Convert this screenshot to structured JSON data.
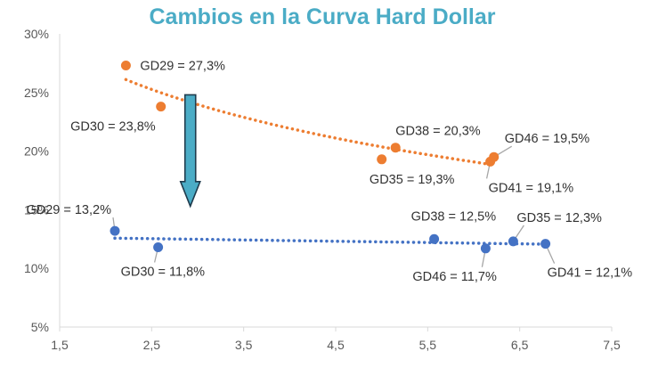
{
  "chart_data": {
    "type": "scatter",
    "title": "Cambios en la Curva Hard Dollar",
    "xlabel": "",
    "ylabel": "",
    "xlim": [
      1.5,
      7.5
    ],
    "ylim": [
      5,
      30
    ],
    "x_ticks": [
      1.5,
      2.5,
      3.5,
      4.5,
      5.5,
      6.5,
      7.5
    ],
    "x_tick_labels": [
      "1,5",
      "2,5",
      "3,5",
      "4,5",
      "5,5",
      "6,5",
      "7,5"
    ],
    "y_ticks": [
      5,
      10,
      15,
      20,
      25,
      30
    ],
    "y_tick_labels": [
      "5%",
      "10%",
      "15%",
      "20%",
      "25%",
      "30%"
    ],
    "grid": false,
    "legend": "none",
    "trendline": "dotted",
    "arrow": "down",
    "colors": {
      "title": "#4BACC6",
      "orange": "#ED7D31",
      "blue": "#4472C4",
      "arrow": "#4BACC6",
      "leader": "#A6A6A6",
      "axis": "#D9D9D9"
    },
    "series": [
      {
        "color": "orange",
        "trend": "logarithmic",
        "points": [
          {
            "x": 2.22,
            "y": 27.3,
            "label": "GD29 = 27,3%"
          },
          {
            "x": 2.6,
            "y": 23.8,
            "label": "GD30 = 23,8%"
          },
          {
            "x": 5.0,
            "y": 19.3,
            "label": "GD35 = 19,3%"
          },
          {
            "x": 5.15,
            "y": 20.3,
            "label": "GD38 = 20,3%"
          },
          {
            "x": 6.18,
            "y": 19.1,
            "label": "GD41 = 19,1%"
          },
          {
            "x": 6.22,
            "y": 19.5,
            "label": "GD46 = 19,5%"
          }
        ]
      },
      {
        "color": "blue",
        "trend": "linear",
        "points": [
          {
            "x": 2.1,
            "y": 13.2,
            "label": "GD29 = 13,2%"
          },
          {
            "x": 2.57,
            "y": 11.8,
            "label": "GD30 = 11,8%"
          },
          {
            "x": 5.57,
            "y": 12.5,
            "label": "GD38 = 12,5%"
          },
          {
            "x": 6.13,
            "y": 11.7,
            "label": "GD46 = 11,7%"
          },
          {
            "x": 6.43,
            "y": 12.3,
            "label": "GD35 = 12,3%"
          },
          {
            "x": 6.78,
            "y": 12.1,
            "label": "GD41 = 12,1%"
          }
        ]
      }
    ]
  }
}
